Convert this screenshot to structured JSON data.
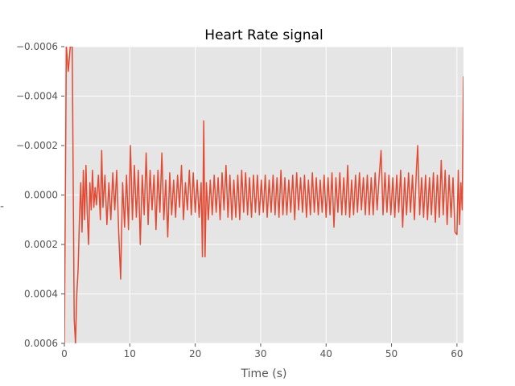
{
  "chart_data": {
    "type": "line",
    "title": "Heart Rate signal",
    "xlabel": "Time (s)",
    "ylabel": "-",
    "xlim": [
      0,
      61
    ],
    "ylim": [
      0.0006,
      -0.0006
    ],
    "y_inverted": true,
    "grid": true,
    "background_color": "#e5e5e5",
    "grid_color": "#ffffff",
    "x_ticks": [
      0,
      10,
      20,
      30,
      40,
      50,
      60
    ],
    "x_tick_labels": [
      "0",
      "10",
      "20",
      "30",
      "40",
      "50",
      "60"
    ],
    "y_ticks": [
      -0.0006,
      -0.0004,
      -0.0002,
      0,
      0.0002,
      0.0004,
      0.0006
    ],
    "y_tick_labels": [
      "−0.0006",
      "−0.0004",
      "−0.0002",
      "0.0000",
      "0.0002",
      "0.0004",
      "0.0006"
    ],
    "series": [
      {
        "color": "#e24a33",
        "points": [
          [
            0.0,
            0.0006
          ],
          [
            0.3,
            -0.0006
          ],
          [
            0.6,
            -0.0005
          ],
          [
            0.9,
            -0.0006
          ],
          [
            1.2,
            -0.0006
          ],
          [
            1.5,
            0.0005
          ],
          [
            1.7,
            0.0006
          ],
          [
            1.9,
            0.0004
          ],
          [
            2.1,
            0.0003
          ],
          [
            2.3,
            0.0001
          ],
          [
            2.5,
            -5e-05
          ],
          [
            2.7,
            0.00015
          ],
          [
            2.9,
            -0.0001
          ],
          [
            3.1,
            0.0001
          ],
          [
            3.3,
            -0.00012
          ],
          [
            3.5,
            8e-05
          ],
          [
            3.7,
            0.0002
          ],
          [
            3.9,
            -5e-05
          ],
          [
            4.1,
            6e-05
          ],
          [
            4.3,
            -0.0001
          ],
          [
            4.5,
            5e-05
          ],
          [
            4.7,
            -3e-05
          ],
          [
            4.9,
            4e-05
          ],
          [
            5.2,
            -8e-05
          ],
          [
            5.5,
            0.0001
          ],
          [
            5.7,
            -0.00018
          ],
          [
            5.9,
            5e-05
          ],
          [
            6.2,
            -8e-05
          ],
          [
            6.5,
            0.00012
          ],
          [
            6.8,
            -5e-05
          ],
          [
            7.1,
            0.0001
          ],
          [
            7.4,
            -9e-05
          ],
          [
            7.7,
            6e-05
          ],
          [
            8.0,
            -0.0001
          ],
          [
            8.3,
            0.00015
          ],
          [
            8.6,
            0.00034
          ],
          [
            8.9,
            -5e-05
          ],
          [
            9.2,
            0.00013
          ],
          [
            9.5,
            -8e-05
          ],
          [
            9.8,
            0.00014
          ],
          [
            10.1,
            -0.0002
          ],
          [
            10.4,
            0.0001
          ],
          [
            10.7,
            -0.00012
          ],
          [
            11.0,
            9e-05
          ],
          [
            11.3,
            -0.0001
          ],
          [
            11.6,
            0.0002
          ],
          [
            11.9,
            -8e-05
          ],
          [
            12.2,
            8e-05
          ],
          [
            12.5,
            -0.00017
          ],
          [
            12.8,
            0.00012
          ],
          [
            13.1,
            -0.0001
          ],
          [
            13.4,
            6e-05
          ],
          [
            13.7,
            -8e-05
          ],
          [
            14.0,
            0.00014
          ],
          [
            14.3,
            -0.0001
          ],
          [
            14.6,
            7e-05
          ],
          [
            14.9,
            -0.00017
          ],
          [
            15.2,
            0.0001
          ],
          [
            15.5,
            -6e-05
          ],
          [
            15.8,
            0.00017
          ],
          [
            16.1,
            -9e-05
          ],
          [
            16.4,
            8e-05
          ],
          [
            16.7,
            -6e-05
          ],
          [
            17.0,
            9e-05
          ],
          [
            17.3,
            -8e-05
          ],
          [
            17.6,
            5e-05
          ],
          [
            17.9,
            -0.00012
          ],
          [
            18.2,
            0.0001
          ],
          [
            18.5,
            -5e-05
          ],
          [
            18.8,
            6e-05
          ],
          [
            19.1,
            -0.0001
          ],
          [
            19.4,
            8e-05
          ],
          [
            19.7,
            -9e-05
          ],
          [
            20.0,
            7e-05
          ],
          [
            20.3,
            -6e-05
          ],
          [
            20.6,
            9e-05
          ],
          [
            20.9,
            -5e-05
          ],
          [
            21.1,
            0.00025
          ],
          [
            21.3,
            -0.0003
          ],
          [
            21.5,
            0.00025
          ],
          [
            21.7,
            -5e-05
          ],
          [
            22.0,
            0.0001
          ],
          [
            22.3,
            -6e-05
          ],
          [
            22.6,
            8e-05
          ],
          [
            22.9,
            -8e-05
          ],
          [
            23.2,
            7e-05
          ],
          [
            23.5,
            -7e-05
          ],
          [
            23.8,
            0.0001
          ],
          [
            24.1,
            -9e-05
          ],
          [
            24.4,
            6e-05
          ],
          [
            24.7,
            -0.00012
          ],
          [
            25.0,
            9e-05
          ],
          [
            25.3,
            -8e-05
          ],
          [
            25.6,
            0.0001
          ],
          [
            25.9,
            -6e-05
          ],
          [
            26.2,
            9e-05
          ],
          [
            26.5,
            -8e-05
          ],
          [
            26.8,
            0.0001
          ],
          [
            27.1,
            -0.0001
          ],
          [
            27.4,
            7e-05
          ],
          [
            27.7,
            -9e-05
          ],
          [
            28.0,
            8e-05
          ],
          [
            28.3,
            -7e-05
          ],
          [
            28.6,
            9e-05
          ],
          [
            28.9,
            -8e-05
          ],
          [
            29.2,
            7e-05
          ],
          [
            29.5,
            -8e-05
          ],
          [
            29.8,
            8e-05
          ],
          [
            30.1,
            -6e-05
          ],
          [
            30.4,
            7e-05
          ],
          [
            30.7,
            -8e-05
          ],
          [
            31.0,
            9e-05
          ],
          [
            31.3,
            -6e-05
          ],
          [
            31.6,
            7e-05
          ],
          [
            31.9,
            -8e-05
          ],
          [
            32.2,
            8e-05
          ],
          [
            32.5,
            -7e-05
          ],
          [
            32.8,
            9e-05
          ],
          [
            33.1,
            -0.0001
          ],
          [
            33.4,
            8e-05
          ],
          [
            33.7,
            -7e-05
          ],
          [
            34.0,
            8e-05
          ],
          [
            34.3,
            -6e-05
          ],
          [
            34.6,
            7e-05
          ],
          [
            34.9,
            -8e-05
          ],
          [
            35.2,
            0.0001
          ],
          [
            35.5,
            -9e-05
          ],
          [
            35.8,
            6e-05
          ],
          [
            36.1,
            -7e-05
          ],
          [
            36.4,
            7e-05
          ],
          [
            36.7,
            -8e-05
          ],
          [
            37.0,
            9e-05
          ],
          [
            37.3,
            -6e-05
          ],
          [
            37.6,
            8e-05
          ],
          [
            37.9,
            -9e-05
          ],
          [
            38.2,
            7e-05
          ],
          [
            38.5,
            -7e-05
          ],
          [
            38.8,
            8e-05
          ],
          [
            39.1,
            -6e-05
          ],
          [
            39.4,
            7e-05
          ],
          [
            39.7,
            -8e-05
          ],
          [
            40.0,
            9e-05
          ],
          [
            40.3,
            -7e-05
          ],
          [
            40.6,
            8e-05
          ],
          [
            40.9,
            -9e-05
          ],
          [
            41.2,
            0.00013
          ],
          [
            41.5,
            -7e-05
          ],
          [
            41.8,
            7e-05
          ],
          [
            42.1,
            -9e-05
          ],
          [
            42.4,
            8e-05
          ],
          [
            42.7,
            -7e-05
          ],
          [
            43.0,
            8e-05
          ],
          [
            43.3,
            -0.00012
          ],
          [
            43.6,
            9e-05
          ],
          [
            43.9,
            -6e-05
          ],
          [
            44.2,
            8e-05
          ],
          [
            44.5,
            -8e-05
          ],
          [
            44.8,
            7e-05
          ],
          [
            45.1,
            -9e-05
          ],
          [
            45.4,
            6e-05
          ],
          [
            45.7,
            -7e-05
          ],
          [
            46.0,
            8e-05
          ],
          [
            46.3,
            -8e-05
          ],
          [
            46.6,
            8e-05
          ],
          [
            46.9,
            -7e-05
          ],
          [
            47.2,
            8e-05
          ],
          [
            47.5,
            -9e-05
          ],
          [
            47.8,
            6e-05
          ],
          [
            48.1,
            -7e-05
          ],
          [
            48.4,
            -0.00018
          ],
          [
            48.7,
            8e-05
          ],
          [
            49.0,
            -9e-05
          ],
          [
            49.3,
            7e-05
          ],
          [
            49.6,
            -8e-05
          ],
          [
            49.9,
            8e-05
          ],
          [
            50.2,
            -7e-05
          ],
          [
            50.5,
            9e-05
          ],
          [
            50.8,
            -8e-05
          ],
          [
            51.1,
            7e-05
          ],
          [
            51.4,
            -0.0001
          ],
          [
            51.7,
            0.00013
          ],
          [
            52.0,
            -7e-05
          ],
          [
            52.3,
            8e-05
          ],
          [
            52.6,
            -9e-05
          ],
          [
            52.9,
            7e-05
          ],
          [
            53.2,
            -8e-05
          ],
          [
            53.5,
            0.0001
          ],
          [
            53.8,
            -0.0001
          ],
          [
            54.0,
            -0.0002
          ],
          [
            54.3,
            8e-05
          ],
          [
            54.6,
            -7e-05
          ],
          [
            54.9,
            9e-05
          ],
          [
            55.2,
            -8e-05
          ],
          [
            55.5,
            0.0001
          ],
          [
            55.8,
            -7e-05
          ],
          [
            56.1,
            8e-05
          ],
          [
            56.4,
            -9e-05
          ],
          [
            56.7,
            0.00011
          ],
          [
            57.0,
            -8e-05
          ],
          [
            57.3,
            9e-05
          ],
          [
            57.6,
            -0.00014
          ],
          [
            57.9,
            8e-05
          ],
          [
            58.2,
            -0.0001
          ],
          [
            58.5,
            0.00012
          ],
          [
            58.8,
            -8e-05
          ],
          [
            59.1,
            9e-05
          ],
          [
            59.4,
            -7e-05
          ],
          [
            59.7,
            0.00015
          ],
          [
            60.0,
            0.00016
          ],
          [
            60.2,
            -0.0001
          ],
          [
            60.4,
            0.00012
          ],
          [
            60.6,
            -5e-05
          ],
          [
            60.8,
            6e-05
          ],
          [
            61.0,
            -0.00048
          ]
        ]
      }
    ]
  }
}
